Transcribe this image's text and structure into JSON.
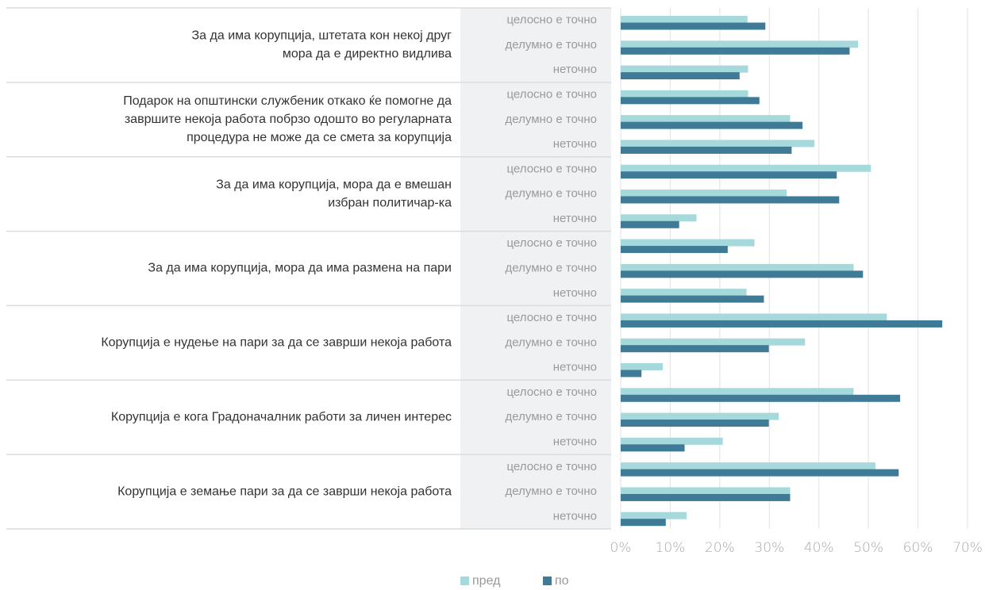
{
  "chart_data": {
    "type": "grouped-hbar",
    "groups": [
      [
        "За да има корупција, штетата кон некој друг",
        "мора да е директно видлива"
      ],
      [
        "Подарок на општински службеник откако ќе помогне да",
        "завршите некоја работа побрзо одошто во регуларната",
        "процедура не може да се смета за корупција"
      ],
      [
        "За да има корупција, мора да е вмешан",
        "избран политичар-ка"
      ],
      [
        "За да има корупција, мора да има размена на пари"
      ],
      [
        "Корупција е нудење на пари за да се заврши некоја работа"
      ],
      [
        "Корупција е кога Градоначалник работи за личен интерес"
      ],
      [
        "Корупција е земање пари за да се заврши некоја работа"
      ]
    ],
    "categories": [
      "целосно е точно",
      "делумно е точно",
      "неточно"
    ],
    "series": [
      {
        "name": "пред",
        "color": "#a6d9db",
        "values": [
          [
            25.6,
            47.9,
            25.7
          ],
          [
            25.7,
            34.2,
            39.1
          ],
          [
            50.5,
            33.5,
            15.3
          ],
          [
            27,
            47,
            25.4
          ],
          [
            53.7,
            37.2,
            8.5
          ],
          [
            47,
            31.9,
            20.6
          ],
          [
            51.4,
            34.2,
            13.3
          ]
        ]
      },
      {
        "name": "по",
        "color": "#3f7b97",
        "values": [
          [
            29.2,
            46.2,
            24
          ],
          [
            28,
            36.7,
            34.5
          ],
          [
            43.6,
            44.1,
            11.8
          ],
          [
            21.6,
            48.9,
            28.9
          ],
          [
            64.9,
            29.9,
            4.2
          ],
          [
            56.4,
            29.9,
            12.9
          ],
          [
            56.1,
            34.2,
            9.1
          ]
        ]
      }
    ],
    "xlim": [
      0,
      70
    ],
    "xticks": [
      {
        "value": 0,
        "label": "0%"
      },
      {
        "value": 10,
        "label": "10%"
      },
      {
        "value": 20,
        "label": "20%"
      },
      {
        "value": 30,
        "label": "30%"
      },
      {
        "value": 40,
        "label": "40%"
      },
      {
        "value": 50,
        "label": "50%"
      },
      {
        "value": 60,
        "label": "60%"
      },
      {
        "value": 70,
        "label": "70%"
      }
    ],
    "grid": true,
    "legend": "bottom"
  }
}
